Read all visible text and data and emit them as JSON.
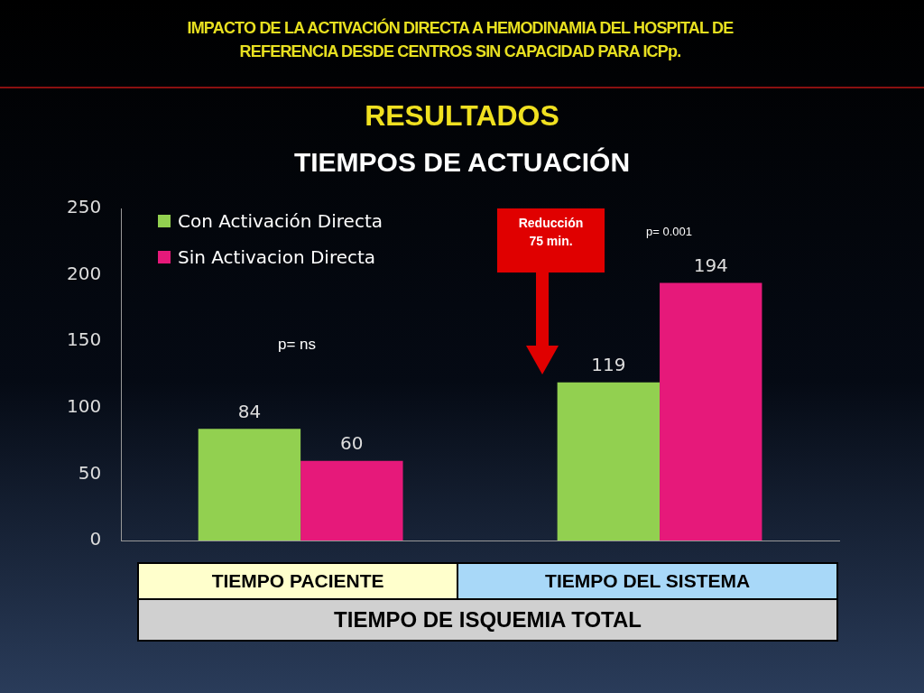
{
  "chart_data": {
    "type": "bar",
    "title": "TIEMPOS DE ACTUACIÓN",
    "subtitle": "RESULTADOS",
    "xlabel": "TIEMPO DE ISQUEMIA TOTAL",
    "categories": [
      "TIEMPO PACIENTE",
      "TIEMPO DEL SISTEMA"
    ],
    "series": [
      {
        "name": "Con Activación Directa",
        "color": "#92d050",
        "values": [
          84,
          119
        ]
      },
      {
        "name": "Sin Activacion Directa",
        "color": "#e6197a",
        "values": [
          60,
          194
        ]
      }
    ],
    "ylim": [
      0,
      250
    ],
    "yticks": [
      0,
      50,
      100,
      150,
      200,
      250
    ],
    "grid": false,
    "legend": "top left",
    "data_labels": true,
    "annotations": [
      "IMPACTO DE LA ACTIVACIÓN DIRECTA A HEMODINAMIA DEL HOSPITAL DE REFERENCIA DESDE CENTROS SIN CAPACIDAD PARA ICPp.",
      "p= ns",
      "p= 0.001",
      "Reducción 75 min."
    ]
  }
}
